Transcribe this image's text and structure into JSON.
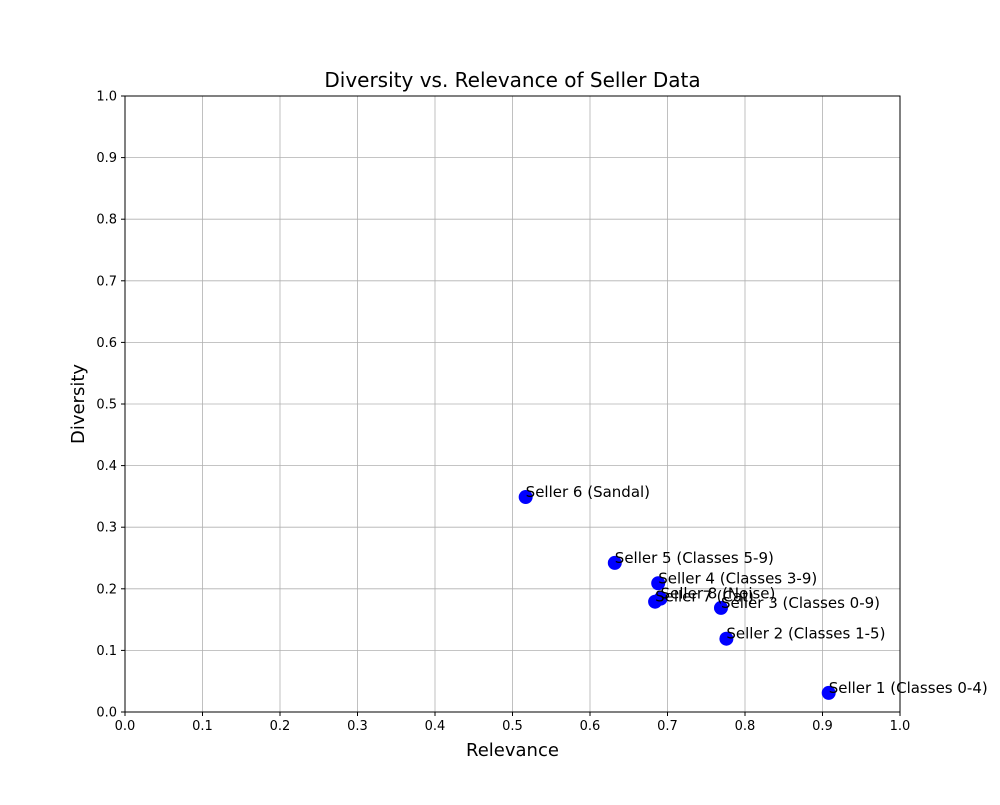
{
  "chart_data": {
    "type": "scatter",
    "title": "Diversity vs. Relevance of Seller Data",
    "xlabel": "Relevance",
    "ylabel": "Diversity",
    "xlim": [
      0.0,
      1.0
    ],
    "ylim": [
      0.0,
      1.0
    ],
    "grid": true,
    "x_ticks": [
      "0.0",
      "0.1",
      "0.2",
      "0.3",
      "0.4",
      "0.5",
      "0.6",
      "0.7",
      "0.8",
      "0.9",
      "1.0"
    ],
    "y_ticks": [
      "0.0",
      "0.1",
      "0.2",
      "0.3",
      "0.4",
      "0.5",
      "0.6",
      "0.7",
      "0.8",
      "0.9",
      "1.0"
    ],
    "marker_color": "#0000ff",
    "points": [
      {
        "label": "Seller 1 (Classes 0-4)",
        "x": 0.908,
        "y": 0.031
      },
      {
        "label": "Seller 2 (Classes 1-5)",
        "x": 0.776,
        "y": 0.119
      },
      {
        "label": "Seller 3 (Classes 0-9)",
        "x": 0.769,
        "y": 0.169
      },
      {
        "label": "Seller 4 (Classes 3-9)",
        "x": 0.688,
        "y": 0.209
      },
      {
        "label": "Seller 5 (Classes 5-9)",
        "x": 0.632,
        "y": 0.242
      },
      {
        "label": "Seller 6 (Sandal)",
        "x": 0.517,
        "y": 0.349
      },
      {
        "label": "Seller 7 (Cat)",
        "x": 0.684,
        "y": 0.179
      },
      {
        "label": "Seller 8 (Noise)",
        "x": 0.691,
        "y": 0.184
      }
    ]
  }
}
